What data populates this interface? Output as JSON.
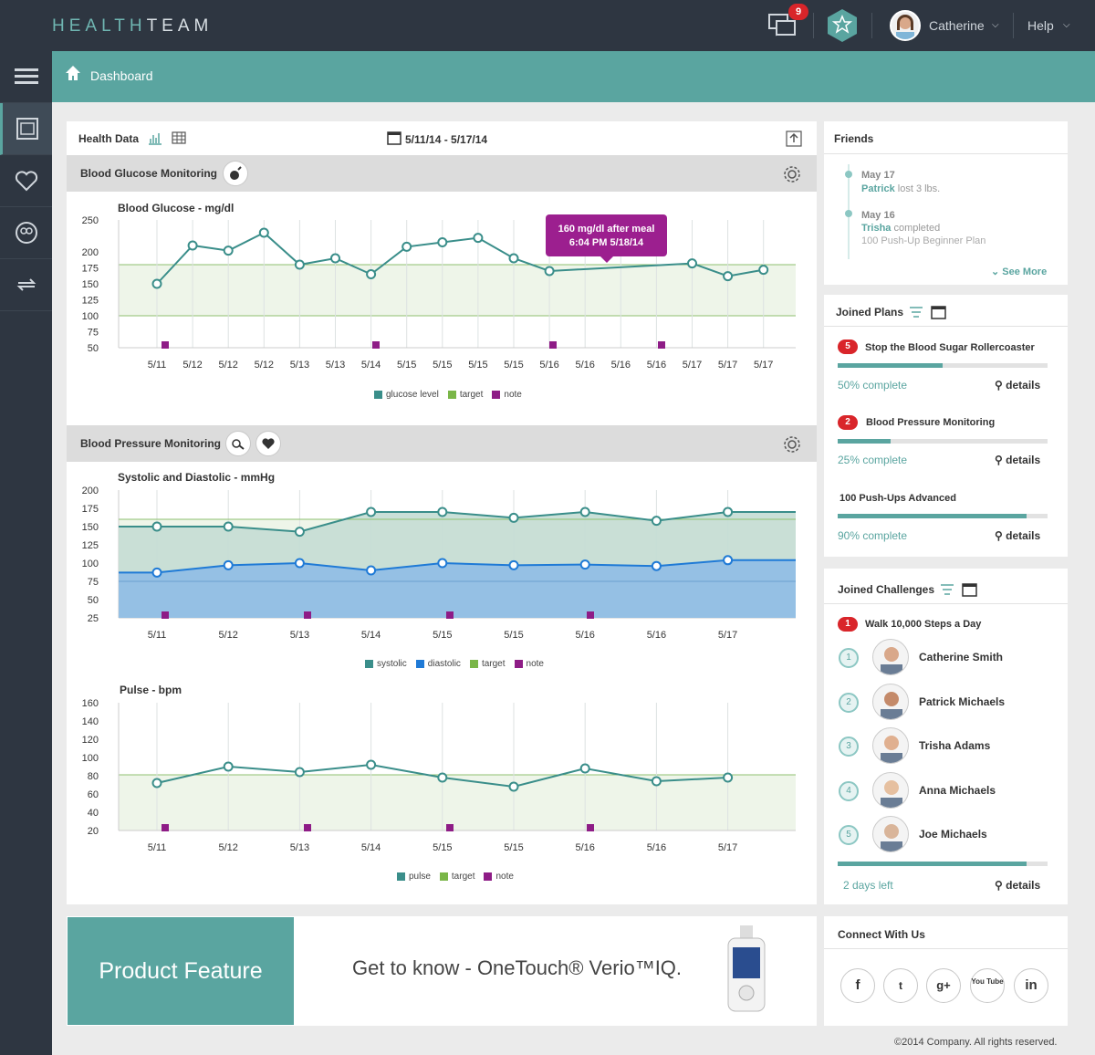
{
  "brand": {
    "part1": "HEALTH",
    "part2": "TEAM"
  },
  "topbar": {
    "notif_count": "9",
    "user": "Catherine",
    "help": "Help"
  },
  "breadcrumb": "Dashboard",
  "health": {
    "title": "Health Data",
    "range": "5/11/14 - 5/17/14"
  },
  "glucose": {
    "section": "Blood Glucose Monitoring",
    "title": "Blood Glucose -  mg/dl",
    "tooltip1": "160 mg/dl after meal",
    "tooltip2": "6:04 PM 5/18/14",
    "legend": [
      "glucose level",
      "target",
      "note"
    ]
  },
  "bp": {
    "section": "Blood Pressure Monitoring",
    "title": "Systolic and Diastolic - mmHg",
    "legend": [
      "systolic",
      "diastolic",
      "target",
      "note"
    ]
  },
  "pulse": {
    "title": "Pulse - bpm",
    "legend": [
      "pulse",
      "target",
      "note"
    ]
  },
  "chart_data": [
    {
      "type": "line",
      "title": "Blood Glucose -  mg/dl",
      "ylim": [
        50,
        250
      ],
      "yticks": [
        250,
        200,
        175,
        150,
        125,
        100,
        75,
        50
      ],
      "categories": [
        "5/11",
        "5/12",
        "5/12",
        "5/12",
        "5/13",
        "5/13",
        "5/14",
        "5/15",
        "5/15",
        "5/15",
        "5/15",
        "5/16",
        "5/16",
        "5/16",
        "5/16",
        "5/17",
        "5/17",
        "5/17"
      ],
      "series": [
        {
          "name": "glucose level",
          "values": [
            150,
            210,
            202,
            230,
            180,
            190,
            165,
            208,
            215,
            222,
            190,
            170,
            null,
            null,
            null,
            182,
            162,
            172
          ]
        }
      ],
      "target": [
        100,
        180
      ],
      "notes": [
        "5/11",
        "5/14",
        "5/16",
        "5/16"
      ]
    },
    {
      "type": "area",
      "title": "Systolic and Diastolic - mmHg",
      "ylim": [
        25,
        200
      ],
      "yticks": [
        200,
        175,
        150,
        125,
        100,
        75,
        50,
        25
      ],
      "categories": [
        "5/11",
        "5/12",
        "5/13",
        "5/14",
        "5/15",
        "5/15",
        "5/16",
        "5/16",
        "5/17"
      ],
      "series": [
        {
          "name": "systolic",
          "values": [
            150,
            150,
            143,
            170,
            170,
            162,
            170,
            158,
            170
          ]
        },
        {
          "name": "diastolic",
          "values": [
            87,
            97,
            100,
            90,
            100,
            97,
            98,
            96,
            104
          ]
        }
      ],
      "target": [
        75,
        160
      ],
      "notes": [
        "5/11",
        "5/13",
        "5/15",
        "5/16"
      ]
    },
    {
      "type": "line",
      "title": "Pulse - bpm",
      "ylim": [
        20,
        160
      ],
      "yticks": [
        160,
        140,
        120,
        100,
        80,
        60,
        40,
        20
      ],
      "categories": [
        "5/11",
        "5/12",
        "5/13",
        "5/14",
        "5/15",
        "5/15",
        "5/16",
        "5/16",
        "5/17"
      ],
      "series": [
        {
          "name": "pulse",
          "values": [
            72,
            90,
            84,
            92,
            78,
            68,
            88,
            74,
            78
          ]
        }
      ],
      "target": [
        20,
        81
      ],
      "notes": [
        "5/11",
        "5/13",
        "5/15",
        "5/16"
      ]
    }
  ],
  "friends": {
    "title": "Friends",
    "items": [
      {
        "date": "May 17",
        "name": "Patrick",
        "text": "lost 3 lbs."
      },
      {
        "date": "May 16",
        "name": "Trisha",
        "text": "completed",
        "sub": "100 Push-Up Beginner Plan"
      }
    ],
    "more": "See More"
  },
  "plans": {
    "title": "Joined Plans",
    "items": [
      {
        "badge": "5",
        "name": "Stop the Blood Sugar Rollercoaster",
        "pct": "50% complete",
        "progress": 0.5
      },
      {
        "badge": "2",
        "name": "Blood Pressure Monitoring",
        "pct": "25% complete",
        "progress": 0.25
      },
      {
        "badge": "",
        "name": "100 Push-Ups Advanced",
        "pct": "90% complete",
        "progress": 0.9
      }
    ],
    "details": "details"
  },
  "challenges": {
    "title": "Joined Challenges",
    "badge": "1",
    "name": "Walk 10,000 Steps a Day",
    "people": [
      {
        "rank": "1",
        "name": "Catherine Smith"
      },
      {
        "rank": "2",
        "name": "Patrick Michaels"
      },
      {
        "rank": "3",
        "name": "Trisha Adams"
      },
      {
        "rank": "4",
        "name": "Anna Michaels"
      },
      {
        "rank": "5",
        "name": "Joe Michaels"
      }
    ],
    "left": "2 days left",
    "progress": 0.9,
    "details": "details"
  },
  "connect": {
    "title": "Connect With Us",
    "icons": [
      "f",
      "t",
      "g+",
      "You Tube",
      "in"
    ]
  },
  "product": {
    "label": "Product Feature",
    "text": "Get to know - OneTouch® Verio™IQ."
  },
  "footer": "©2014 Company. All rights reserved."
}
